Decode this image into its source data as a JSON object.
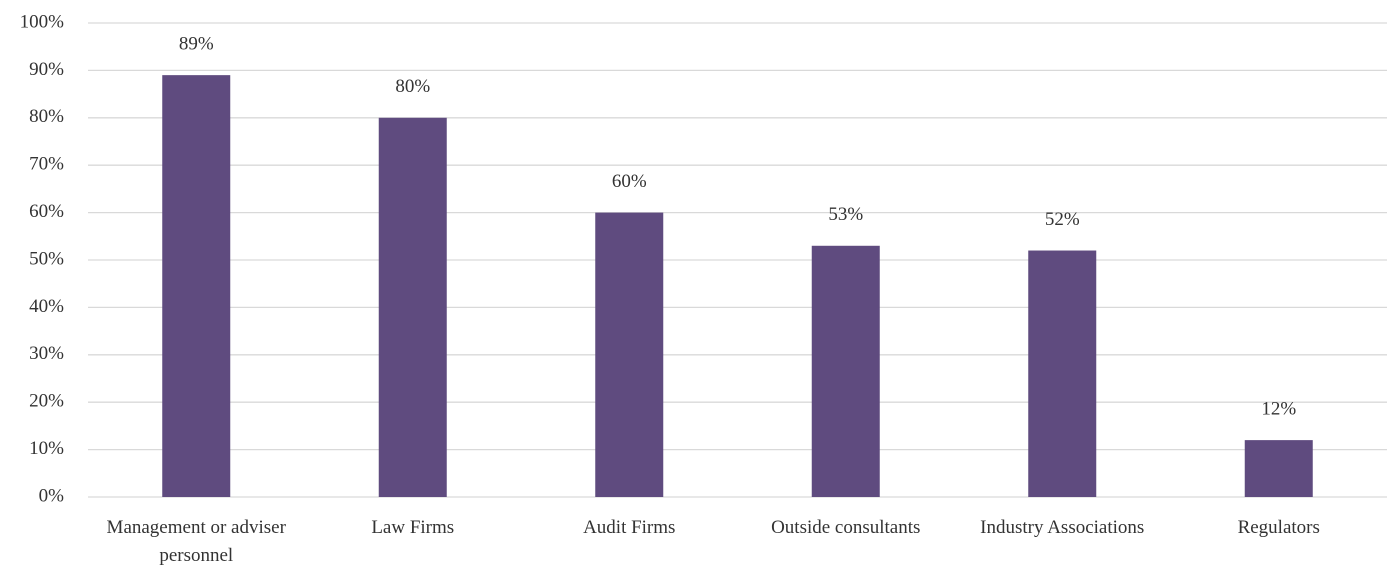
{
  "chart_data": {
    "type": "bar",
    "categories": [
      "Management or adviser personnel",
      "Law Firms",
      "Audit Firms",
      "Outside consultants",
      "Industry Associations",
      "Regulators"
    ],
    "values": [
      89,
      80,
      60,
      53,
      52,
      12
    ],
    "value_labels": [
      "89%",
      "80%",
      "60%",
      "53%",
      "52%",
      "12%"
    ],
    "color": "#5f4b7f",
    "ylim": [
      0,
      100
    ],
    "yticks": [
      {
        "value": 0,
        "label": "0%"
      },
      {
        "value": 10,
        "label": "10%"
      },
      {
        "value": 20,
        "label": "20%"
      },
      {
        "value": 30,
        "label": "30%"
      },
      {
        "value": 40,
        "label": "40%"
      },
      {
        "value": 50,
        "label": "50%"
      },
      {
        "value": 60,
        "label": "60%"
      },
      {
        "value": 70,
        "label": "70%"
      },
      {
        "value": 80,
        "label": "80%"
      },
      {
        "value": 90,
        "label": "90%"
      },
      {
        "value": 100,
        "label": "100%"
      }
    ],
    "grid": true
  }
}
